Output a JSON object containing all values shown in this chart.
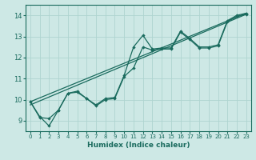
{
  "xlabel": "Humidex (Indice chaleur)",
  "xlim": [
    -0.5,
    23.5
  ],
  "ylim": [
    8.5,
    14.5
  ],
  "yticks": [
    9,
    10,
    11,
    12,
    13,
    14
  ],
  "xticks": [
    0,
    1,
    2,
    3,
    4,
    5,
    6,
    7,
    8,
    9,
    10,
    11,
    12,
    13,
    14,
    15,
    16,
    17,
    18,
    19,
    20,
    21,
    22,
    23
  ],
  "bg_color": "#cde8e5",
  "grid_color": "#aed4d0",
  "line_color": "#1a6b5e",
  "series_main": {
    "x": [
      0,
      1,
      2,
      3,
      4,
      5,
      6,
      7,
      8,
      9,
      10,
      11,
      12,
      13,
      14,
      15,
      16,
      17,
      18,
      19,
      20,
      21,
      22,
      23
    ],
    "y": [
      9.9,
      9.2,
      8.75,
      9.5,
      10.3,
      10.4,
      10.05,
      9.75,
      10.05,
      10.1,
      11.15,
      12.5,
      13.05,
      12.4,
      12.45,
      12.45,
      13.25,
      12.9,
      12.5,
      12.5,
      12.6,
      13.75,
      14.0,
      14.1
    ]
  },
  "series_alt": {
    "x": [
      0,
      1,
      2,
      3,
      4,
      5,
      6,
      7,
      8,
      9,
      10,
      11,
      12,
      13,
      14,
      15,
      16,
      17,
      18,
      19,
      20,
      21,
      22,
      23
    ],
    "y": [
      9.9,
      9.15,
      9.1,
      9.5,
      10.3,
      10.35,
      10.05,
      9.7,
      10.0,
      10.05,
      11.1,
      11.5,
      12.5,
      12.35,
      12.4,
      12.4,
      13.2,
      12.85,
      12.45,
      12.45,
      12.55,
      13.7,
      13.95,
      14.05
    ]
  },
  "line1_x": [
    0,
    23
  ],
  "line1_y": [
    9.9,
    14.1
  ],
  "line2_x": [
    0,
    23
  ],
  "line2_y": [
    9.75,
    14.05
  ]
}
